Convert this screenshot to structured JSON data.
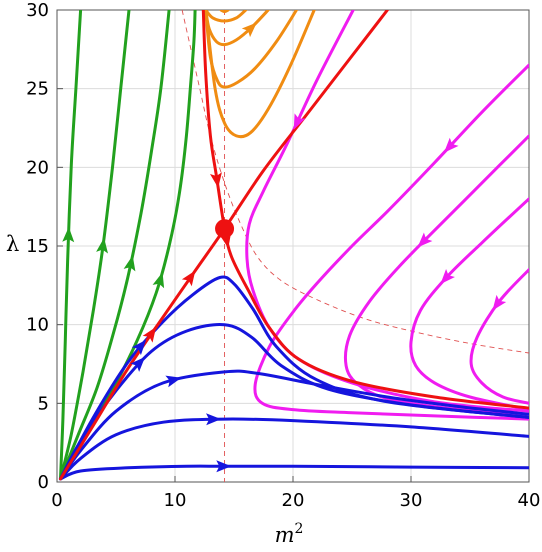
{
  "chart_data": {
    "type": "line",
    "subtype": "phase-portrait",
    "xlabel": "m",
    "xlabel_superscript": "2",
    "ylabel": "λ",
    "xlim": [
      0,
      40
    ],
    "ylim": [
      0,
      30
    ],
    "x_ticks": [
      0,
      10,
      20,
      30,
      40
    ],
    "y_ticks": [
      0,
      5,
      10,
      15,
      20,
      25,
      30
    ],
    "grid": true,
    "fixed_point": {
      "x": 14.2,
      "y": 16.1,
      "color": "#ee1111"
    },
    "reference_lines": [
      {
        "kind": "vertical",
        "x": 14.2,
        "color": "#e05050"
      },
      {
        "kind": "dashed-curve",
        "color": "#e05050",
        "points": [
          [
            10.6,
            30
          ],
          [
            11.2,
            28
          ],
          [
            12.1,
            25
          ],
          [
            13.0,
            22
          ],
          [
            14.2,
            19
          ],
          [
            15.5,
            16.5
          ],
          [
            17,
            14.3
          ],
          [
            19,
            12.8
          ],
          [
            22,
            11.6
          ],
          [
            26,
            10.4
          ],
          [
            30,
            9.6
          ],
          [
            35,
            8.8
          ],
          [
            40,
            8.2
          ]
        ]
      }
    ],
    "series": [
      {
        "group": "green",
        "color": "#22a11e",
        "points": [
          [
            0.3,
            0.2
          ],
          [
            0.5,
            4
          ],
          [
            0.7,
            9
          ],
          [
            0.9,
            14
          ],
          [
            1.2,
            20
          ],
          [
            1.6,
            25
          ],
          [
            2,
            30
          ]
        ],
        "arrows": [
          0.52
        ]
      },
      {
        "group": "green",
        "color": "#22a11e",
        "points": [
          [
            0.3,
            0.2
          ],
          [
            1.2,
            3
          ],
          [
            2.2,
            7
          ],
          [
            3.1,
            11
          ],
          [
            3.9,
            15
          ],
          [
            4.7,
            20
          ],
          [
            5.4,
            25
          ],
          [
            6.1,
            30
          ]
        ],
        "arrows": [
          0.5
        ]
      },
      {
        "group": "green",
        "color": "#22a11e",
        "points": [
          [
            0.3,
            0.2
          ],
          [
            1.8,
            3
          ],
          [
            3.4,
            6
          ],
          [
            4.8,
            9.5
          ],
          [
            6,
            13
          ],
          [
            7.1,
            17
          ],
          [
            8,
            21
          ],
          [
            8.8,
            25
          ],
          [
            9.5,
            30
          ]
        ],
        "arrows": [
          0.47
        ]
      },
      {
        "group": "green",
        "color": "#22a11e",
        "points": [
          [
            0.3,
            0.2
          ],
          [
            2.5,
            3
          ],
          [
            4.8,
            6
          ],
          [
            6.8,
            9
          ],
          [
            8.4,
            12
          ],
          [
            9.5,
            15
          ],
          [
            10.3,
            18
          ],
          [
            10.9,
            21.5
          ],
          [
            11.3,
            25
          ],
          [
            11.6,
            28
          ],
          [
            11.7,
            30
          ]
        ],
        "arrows": [
          0.45
        ]
      },
      {
        "group": "orange",
        "color": "#f08c12",
        "points": [
          [
            12.6,
            30
          ],
          [
            13.4,
            25
          ],
          [
            14.2,
            22.8
          ],
          [
            15.2,
            22
          ],
          [
            16.4,
            22.2
          ],
          [
            17.9,
            23.7
          ],
          [
            19.8,
            26.5
          ],
          [
            21.8,
            30
          ]
        ],
        "arrows": []
      },
      {
        "group": "orange",
        "color": "#f08c12",
        "points": [
          [
            12.6,
            30
          ],
          [
            13,
            27
          ],
          [
            13.6,
            25.5
          ],
          [
            14.2,
            25.1
          ],
          [
            15.3,
            25.4
          ],
          [
            16.8,
            26.3
          ],
          [
            18.6,
            28
          ],
          [
            20.3,
            30
          ]
        ],
        "arrows": []
      },
      {
        "group": "orange",
        "color": "#f08c12",
        "points": [
          [
            12.6,
            30
          ],
          [
            12.9,
            28.8
          ],
          [
            13.5,
            28
          ],
          [
            14.2,
            27.8
          ],
          [
            15.2,
            28.1
          ],
          [
            16.5,
            28.9
          ],
          [
            17.9,
            30
          ]
        ],
        "arrows": [
          0.75
        ]
      },
      {
        "group": "orange",
        "color": "#f08c12",
        "points": [
          [
            12.6,
            30
          ],
          [
            13.2,
            29.5
          ],
          [
            14.2,
            29.3
          ],
          [
            15.2,
            29.5
          ],
          [
            16,
            30
          ]
        ],
        "arrows": []
      },
      {
        "group": "orange",
        "color": "#f08c12",
        "points": [
          [
            13.9,
            30
          ],
          [
            14.2,
            29.9
          ],
          [
            14.5,
            30
          ]
        ],
        "arrows": []
      },
      {
        "group": "magenta",
        "color": "#f01cf0",
        "points": [
          [
            40,
            26.5
          ],
          [
            36,
            23.5
          ],
          [
            32,
            20.3
          ],
          [
            28,
            17.2
          ],
          [
            25,
            15
          ],
          [
            22,
            12.6
          ],
          [
            20,
            10.8
          ],
          [
            18,
            8.6
          ],
          [
            16.8,
            6.2
          ],
          [
            17.4,
            5
          ],
          [
            20,
            4.6
          ],
          [
            25,
            4.4
          ],
          [
            32,
            4.2
          ],
          [
            40,
            4
          ]
        ],
        "arrows": [
          0.16
        ]
      },
      {
        "group": "magenta",
        "color": "#f01cf0",
        "points": [
          [
            40,
            22
          ],
          [
            36,
            19
          ],
          [
            32,
            16
          ],
          [
            29,
            13.7
          ],
          [
            26.5,
            11.5
          ],
          [
            24.8,
            9.3
          ],
          [
            24.5,
            7.4
          ],
          [
            25.5,
            6.2
          ],
          [
            28,
            5.3
          ],
          [
            33,
            4.7
          ],
          [
            40,
            4.3
          ]
        ],
        "arrows": [
          0.3
        ]
      },
      {
        "group": "magenta",
        "color": "#f01cf0",
        "points": [
          [
            40,
            18
          ],
          [
            36,
            15.2
          ],
          [
            33,
            13
          ],
          [
            30.8,
            10.9
          ],
          [
            30,
            8.9
          ],
          [
            30.4,
            7.4
          ],
          [
            32,
            6.3
          ],
          [
            35,
            5.4
          ],
          [
            40,
            4.6
          ]
        ],
        "arrows": [
          0.34
        ]
      },
      {
        "group": "magenta",
        "color": "#f01cf0",
        "points": [
          [
            25.1,
            30
          ],
          [
            22,
            25.5
          ],
          [
            19.5,
            21.5
          ],
          [
            17.5,
            18.5
          ],
          [
            16.3,
            16.4
          ],
          [
            16.1,
            14.2
          ],
          [
            16.6,
            12.2
          ],
          [
            18,
            9.8
          ],
          [
            20.5,
            7.8
          ],
          [
            25,
            6.3
          ],
          [
            32,
            5.1
          ],
          [
            40,
            4.5
          ]
        ],
        "arrows": [
          0.2
        ]
      },
      {
        "group": "magenta",
        "color": "#f01cf0",
        "points": [
          [
            40,
            13.5
          ],
          [
            37.5,
            11.5
          ],
          [
            35.6,
            9.2
          ],
          [
            35.1,
            7.5
          ],
          [
            36,
            6.3
          ],
          [
            37.8,
            5.4
          ],
          [
            40,
            5
          ]
        ],
        "arrows": [
          0.25
        ]
      },
      {
        "group": "blue",
        "color": "#1515dd",
        "points": [
          [
            0.3,
            0.2
          ],
          [
            2,
            0.7
          ],
          [
            6,
            0.9
          ],
          [
            11,
            1
          ],
          [
            14.2,
            1
          ],
          [
            20,
            1
          ],
          [
            30,
            0.95
          ],
          [
            40,
            0.9
          ]
        ],
        "arrows": [
          0.35
        ]
      },
      {
        "group": "blue",
        "color": "#1515dd",
        "points": [
          [
            0.3,
            0.2
          ],
          [
            2,
            1.5
          ],
          [
            5,
            3
          ],
          [
            9,
            3.8
          ],
          [
            14.2,
            4
          ],
          [
            20,
            3.9
          ],
          [
            30,
            3.5
          ],
          [
            40,
            2.9
          ]
        ],
        "arrows": [
          0.35
        ]
      },
      {
        "group": "blue",
        "color": "#1515dd",
        "points": [
          [
            0.3,
            0.2
          ],
          [
            2,
            2
          ],
          [
            5,
            4.5
          ],
          [
            9,
            6.3
          ],
          [
            14.2,
            7
          ],
          [
            17,
            6.9
          ],
          [
            22,
            6.2
          ],
          [
            28,
            5.4
          ],
          [
            34,
            4.8
          ],
          [
            40,
            4.3
          ]
        ],
        "arrows": [
          0.3
        ]
      },
      {
        "group": "blue",
        "color": "#1515dd",
        "points": [
          [
            0.3,
            0.2
          ],
          [
            2,
            2.6
          ],
          [
            5,
            5.8
          ],
          [
            8,
            8.3
          ],
          [
            11,
            9.6
          ],
          [
            14.2,
            10
          ],
          [
            16.5,
            9.2
          ],
          [
            19,
            7.4
          ],
          [
            23,
            5.9
          ],
          [
            30,
            4.9
          ],
          [
            40,
            4.1
          ]
        ],
        "arrows": [
          0.25
        ]
      },
      {
        "group": "blue",
        "color": "#1515dd",
        "points": [
          [
            0.3,
            0.2
          ],
          [
            3,
            4
          ],
          [
            6,
            7.6
          ],
          [
            9,
            10.2
          ],
          [
            11.5,
            11.9
          ],
          [
            13.8,
            13
          ],
          [
            15,
            12.6
          ],
          [
            16.6,
            11
          ],
          [
            18.6,
            8.6
          ],
          [
            22,
            6.5
          ],
          [
            28,
            5.1
          ],
          [
            40,
            4.1
          ]
        ],
        "arrows": [
          0.25
        ]
      },
      {
        "group": "red",
        "color": "#ee1111",
        "points": [
          [
            0.3,
            0.2
          ],
          [
            3,
            3.5
          ],
          [
            6,
            7.2
          ],
          [
            9,
            10.5
          ],
          [
            11.5,
            13.2
          ],
          [
            14.2,
            16.1
          ],
          [
            17.5,
            19.8
          ],
          [
            21,
            23.2
          ],
          [
            24.5,
            26.6
          ],
          [
            28,
            30
          ]
        ],
        "arrows": [
          0.3,
          0.42
        ]
      },
      {
        "group": "red",
        "color": "#ee1111",
        "points": [
          [
            12.4,
            30
          ],
          [
            12.6,
            26
          ],
          [
            13,
            22
          ],
          [
            13.5,
            19.5
          ],
          [
            14.2,
            16.1
          ],
          [
            14.8,
            14.3
          ],
          [
            16.2,
            12.2
          ],
          [
            18,
            9.8
          ],
          [
            20.5,
            7.8
          ],
          [
            25,
            6.4
          ],
          [
            32,
            5.4
          ],
          [
            40,
            4.7
          ]
        ],
        "arrows": [
          0.28,
          0.38
        ]
      }
    ]
  }
}
